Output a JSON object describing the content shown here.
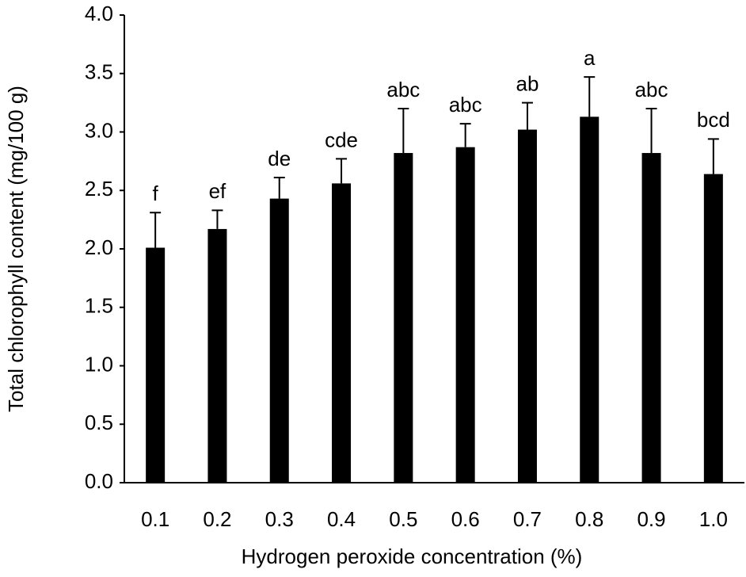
{
  "chart_data": {
    "type": "bar",
    "x_label": "Hydrogen peroxide concentration (%)",
    "y_label": "Total chlorophyll  content (mg/100 g)",
    "categories": [
      "0.1",
      "0.2",
      "0.3",
      "0.4",
      "0.5",
      "0.6",
      "0.7",
      "0.8",
      "0.9",
      "1.0"
    ],
    "values": [
      2.01,
      2.17,
      2.43,
      2.56,
      2.82,
      2.87,
      3.02,
      3.13,
      2.82,
      2.64
    ],
    "errors": [
      0.3,
      0.16,
      0.18,
      0.21,
      0.38,
      0.2,
      0.23,
      0.34,
      0.38,
      0.3
    ],
    "letters": [
      "f",
      "ef",
      "de",
      "cde",
      "abc",
      "abc",
      "ab",
      "a",
      "abc",
      "bcd"
    ],
    "color": "#000000",
    "ylim": [
      0,
      4
    ],
    "yticks": [
      {
        "value": 0,
        "label": "0.0"
      },
      0.5,
      {
        "value": 1,
        "label": "1.0"
      },
      1.5,
      {
        "value": 2,
        "label": "2.0"
      },
      2.5,
      {
        "value": 3,
        "label": "3.0"
      },
      3.5,
      {
        "value": 4,
        "label": "4.0"
      }
    ],
    "grid": false
  }
}
